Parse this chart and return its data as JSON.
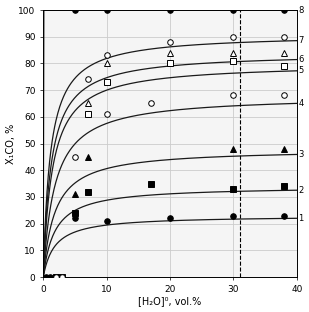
{
  "title": "",
  "xlabel": "[H₂O]⁰, vol.%",
  "ylabel": "X₁CO, %",
  "xlim": [
    0,
    40
  ],
  "ylim": [
    0,
    100
  ],
  "xticks": [
    0,
    10,
    20,
    30,
    40
  ],
  "yticks": [
    0,
    10,
    20,
    30,
    40,
    50,
    60,
    70,
    80,
    90,
    100
  ],
  "vline_x": 31,
  "curves": [
    {
      "label": "1",
      "Xmax": 23,
      "k": 0.3
    },
    {
      "label": "2",
      "Xmax": 34,
      "k": 0.3
    },
    {
      "label": "3",
      "Xmax": 48,
      "k": 0.3
    },
    {
      "label": "4",
      "Xmax": 68,
      "k": 0.3
    },
    {
      "label": "5",
      "Xmax": 80,
      "k": 0.3
    },
    {
      "label": "6",
      "Xmax": 84,
      "k": 0.3
    },
    {
      "label": "7",
      "Xmax": 91,
      "k": 0.3
    },
    {
      "label": "8",
      "Xmax": 100,
      "k": 0.3
    }
  ],
  "markers": [
    {
      "curve": 1,
      "marker": "o",
      "filled": true,
      "x": [
        1,
        5,
        10,
        20,
        30,
        38
      ],
      "y": [
        0,
        22,
        21,
        22,
        23,
        23
      ]
    },
    {
      "curve": 2,
      "marker": "s",
      "filled": true,
      "x": [
        2,
        5,
        7,
        17,
        30,
        38
      ],
      "y": [
        0,
        24,
        32,
        35,
        33,
        34
      ]
    },
    {
      "curve": 3,
      "marker": "^",
      "filled": true,
      "x": [
        2,
        5,
        7,
        30,
        38
      ],
      "y": [
        0,
        31,
        45,
        48,
        48
      ]
    },
    {
      "curve": 4,
      "marker": "o",
      "filled": false,
      "x": [
        2,
        5,
        10,
        17,
        30,
        38
      ],
      "y": [
        0,
        45,
        61,
        65,
        68,
        68
      ]
    },
    {
      "curve": 5,
      "marker": "s",
      "filled": false,
      "x": [
        3,
        7,
        10,
        20,
        30,
        38
      ],
      "y": [
        0,
        61,
        73,
        80,
        81,
        79
      ]
    },
    {
      "curve": 6,
      "marker": "^",
      "filled": false,
      "x": [
        3,
        7,
        10,
        20,
        30,
        38
      ],
      "y": [
        0,
        65,
        80,
        84,
        84,
        84
      ]
    },
    {
      "curve": 7,
      "marker": "o",
      "filled": false,
      "x": [
        3,
        7,
        10,
        20,
        30,
        38
      ],
      "y": [
        0,
        74,
        83,
        88,
        90,
        90
      ]
    },
    {
      "curve": 8,
      "marker": "o",
      "filled": true,
      "x": [
        0,
        5,
        10,
        20,
        30,
        38
      ],
      "y": [
        0,
        100,
        100,
        100,
        100,
        100
      ]
    }
  ],
  "bg_color": "#f5f5f5",
  "line_color": "#1a1a1a",
  "grid_color": "#cccccc"
}
